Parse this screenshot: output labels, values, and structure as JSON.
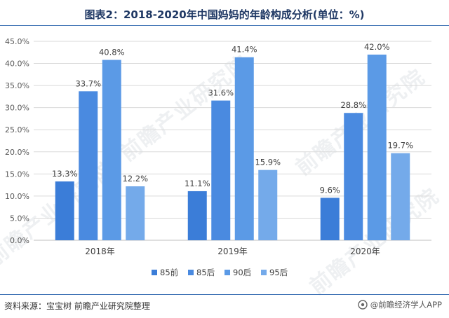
{
  "title": "图表2：2018-2020年中国妈妈的年龄构成分析(单位：%)",
  "source": "资料来源：宝宝树 前瞻产业研究院整理",
  "brand": "@前瞻经济学人APP",
  "watermark": "前瞻产业研究院",
  "colors": {
    "rule": "#3a6fb3",
    "title": "#1f3864"
  },
  "chart_data": {
    "type": "bar",
    "categories": [
      "2018年",
      "2019年",
      "2020年"
    ],
    "series": [
      {
        "name": "85前",
        "values": [
          13.3,
          11.1,
          9.6
        ],
        "color": "#3b7dd8"
      },
      {
        "name": "85后",
        "values": [
          33.7,
          31.6,
          28.8
        ],
        "color": "#4a8ae0"
      },
      {
        "name": "90后",
        "values": [
          40.8,
          41.4,
          42.0
        ],
        "color": "#5b9ae6"
      },
      {
        "name": "95后",
        "values": [
          12.2,
          15.9,
          19.7
        ],
        "color": "#74aaea"
      }
    ],
    "value_labels": [
      [
        "13.3%",
        "11.1%",
        "9.6%"
      ],
      [
        "33.7%",
        "31.6%",
        "28.8%"
      ],
      [
        "40.8%",
        "41.4%",
        "42.0%"
      ],
      [
        "12.2%",
        "15.9%",
        "19.7%"
      ]
    ],
    "yticks": [
      "0.0%",
      "5.0%",
      "10.0%",
      "15.0%",
      "20.0%",
      "25.0%",
      "30.0%",
      "35.0%",
      "40.0%",
      "45.0%"
    ],
    "ylim": [
      0,
      45
    ],
    "grid": true,
    "legend_position": "bottom"
  }
}
